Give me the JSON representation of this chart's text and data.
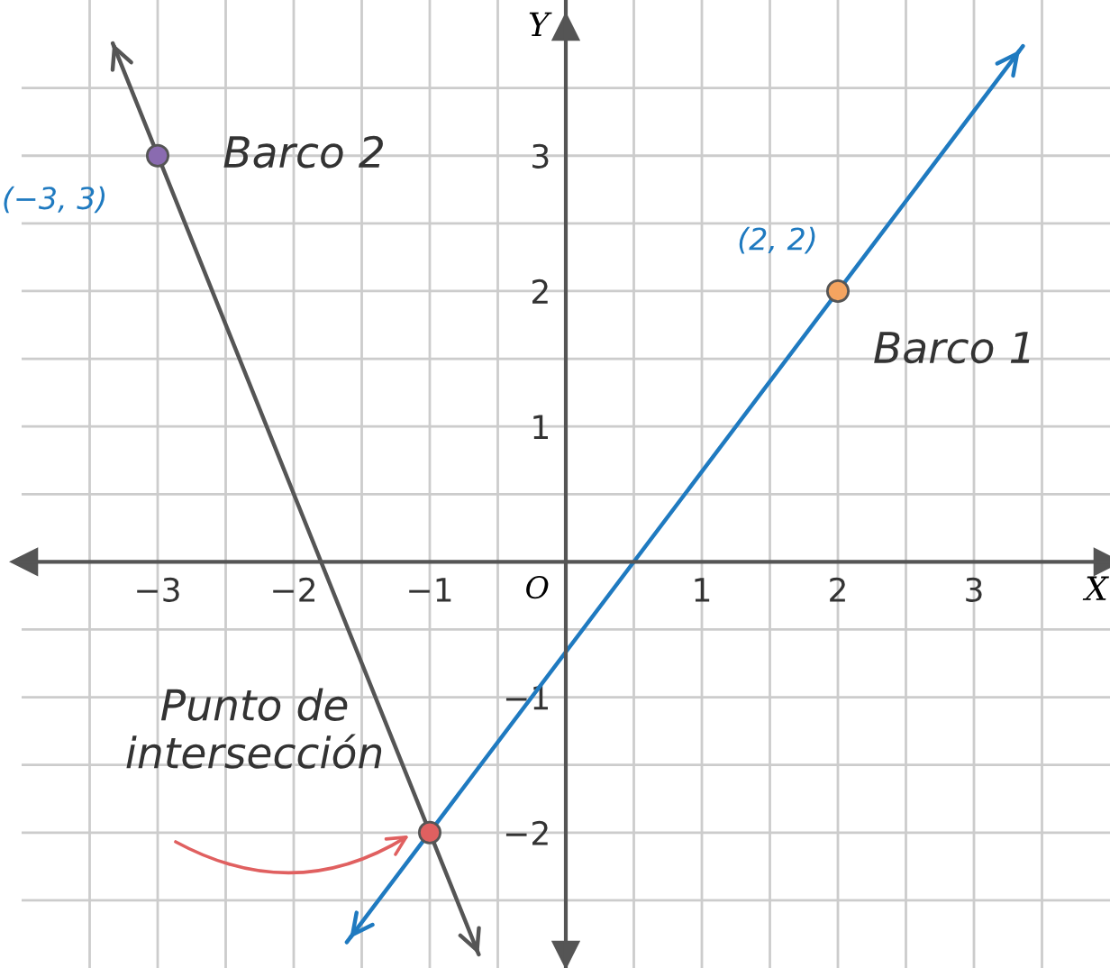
{
  "chart_data": {
    "type": "line",
    "xlabel": "X",
    "ylabel": "Y",
    "xlim": [
      -4,
      4
    ],
    "ylim": [
      -3,
      4.15
    ],
    "xticks": [
      {
        "value": -3.5,
        "label": null
      },
      {
        "value": -3,
        "label": "−3"
      },
      {
        "value": -2.5,
        "label": null
      },
      {
        "value": -2,
        "label": "−2"
      },
      {
        "value": -1.5,
        "label": null
      },
      {
        "value": -1,
        "label": "−1"
      },
      {
        "value": -0.5,
        "label": null
      },
      {
        "value": 0,
        "label": null
      },
      {
        "value": 0.5,
        "label": null
      },
      1,
      {
        "value": 1.5,
        "label": null
      },
      2,
      {
        "value": 2.5,
        "label": null
      },
      3,
      {
        "value": 3.5,
        "label": null
      }
    ],
    "yticks": [
      {
        "value": -2.5,
        "label": null
      },
      {
        "value": -2,
        "label": "−2"
      },
      {
        "value": -1.5,
        "label": null
      },
      {
        "value": -1,
        "label": "−1"
      },
      {
        "value": -0.5,
        "label": null
      },
      {
        "value": 0,
        "label": null
      },
      {
        "value": 0.5,
        "label": null
      },
      1,
      {
        "value": 1.5,
        "label": null
      },
      2,
      {
        "value": 2.5,
        "label": null
      },
      3,
      {
        "value": 3.5,
        "label": null
      }
    ],
    "grid": true,
    "series": [
      {
        "color": "#1f7ac0",
        "x": [
          -1.61,
          3.36
        ],
        "values": [
          -2.81,
          3.81
        ]
      },
      {
        "color": "#555555",
        "x": [
          -3.33,
          -0.64
        ],
        "values": [
          3.83,
          -2.9
        ]
      },
      {
        "type": "scatter",
        "x": [
          -3,
          2,
          -1
        ],
        "values": [
          3,
          2,
          -2
        ],
        "colors": [
          "#8a6bb0",
          "#f4a460",
          "#e06060"
        ]
      }
    ],
    "annotations": [
      {
        "text": "Barco 2",
        "x": -3,
        "y": 3
      },
      {
        "text": "(−3, 3)",
        "x": -3,
        "y": 3
      },
      {
        "text": "(2, 2)",
        "x": 2,
        "y": 2
      },
      {
        "text": "Barco 1",
        "x": 2,
        "y": 2
      },
      {
        "text": "Punto de\nintersección",
        "x": -1,
        "y": -2
      },
      "O"
    ]
  }
}
